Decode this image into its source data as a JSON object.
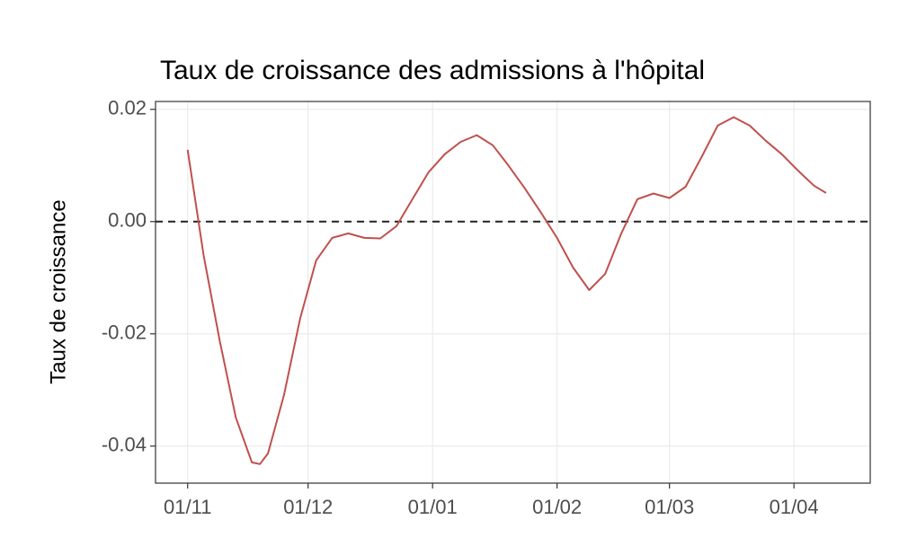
{
  "chart_data": {
    "type": "line",
    "title": "Taux de croissance des admissions à l'hôpital",
    "ylabel": "Taux de croissance",
    "x": [
      "01/11",
      "05/11",
      "09/11",
      "13/11",
      "17/11",
      "19/11",
      "21/11",
      "25/11",
      "29/11",
      "03/12",
      "07/12",
      "11/12",
      "15/12",
      "19/12",
      "23/12",
      "27/12",
      "31/12",
      "04/01",
      "08/01",
      "12/01",
      "16/01",
      "20/01",
      "24/01",
      "28/01",
      "01/02",
      "05/02",
      "09/02",
      "13/02",
      "17/02",
      "21/02",
      "25/02",
      "01/03",
      "05/03",
      "09/03",
      "13/03",
      "17/03",
      "21/03",
      "25/03",
      "29/03",
      "02/04",
      "06/04",
      "09/04"
    ],
    "series": [
      {
        "name": "Taux de croissance",
        "color": "#c0504d",
        "values": [
          0.0128,
          -0.0061,
          -0.0213,
          -0.0349,
          -0.0429,
          -0.0432,
          -0.0413,
          -0.0309,
          -0.0173,
          -0.0069,
          -0.0029,
          -0.0021,
          -0.0029,
          -0.003,
          -0.0008,
          0.004,
          0.0088,
          0.012,
          0.0142,
          0.0154,
          0.0136,
          0.0099,
          0.0059,
          0.0016,
          -0.0029,
          -0.0082,
          -0.0122,
          -0.0093,
          -0.0021,
          0.004,
          0.005,
          0.0042,
          0.0062,
          0.0115,
          0.0171,
          0.0186,
          0.0171,
          0.0144,
          0.012,
          0.0091,
          0.0064,
          0.0051
        ]
      }
    ],
    "xlim": [
      "24/10",
      "20/04"
    ],
    "xticks": [
      "01/11",
      "01/12",
      "01/01",
      "01/02",
      "01/03",
      "01/04"
    ],
    "ylim": [
      -0.0466,
      0.0214
    ],
    "yticks": [
      -0.04,
      -0.02,
      {
        "value": 0,
        "label": "0.00"
      },
      0.02
    ],
    "hline": 0,
    "grid": true
  }
}
